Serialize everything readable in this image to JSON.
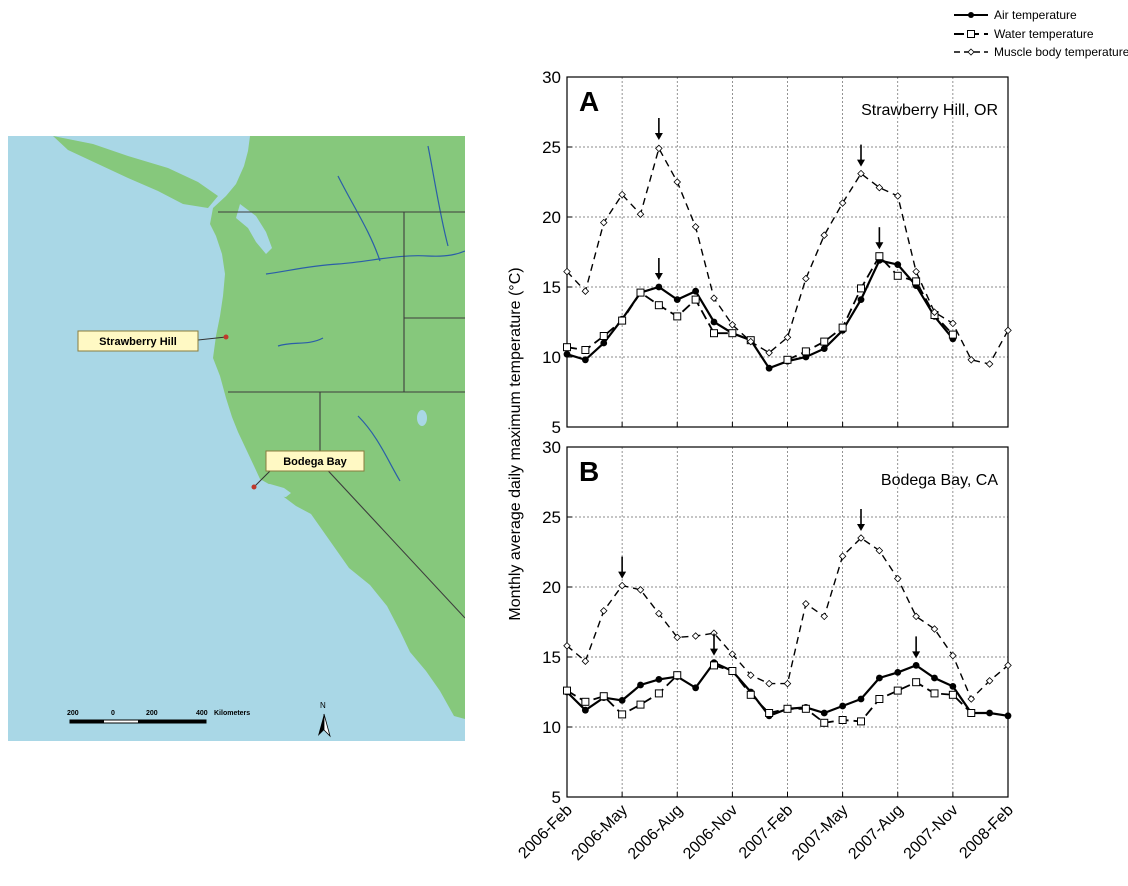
{
  "map": {
    "labels": {
      "site_a": "Strawberry Hill",
      "site_b": "Bodega Bay"
    },
    "scale": {
      "ticks": [
        "200",
        "0",
        "200",
        "400"
      ],
      "unit": "Kilometers"
    },
    "north": "N",
    "colors": {
      "ocean": "#a9d7e6",
      "land": "#86c87c",
      "border": "#3d3d3d",
      "river": "#2b5ea8"
    }
  },
  "chart_data": {
    "type": "line",
    "x": [
      "2006-Feb",
      "2006-Mar",
      "2006-Apr",
      "2006-May",
      "2006-Jun",
      "2006-Jul",
      "2006-Aug",
      "2006-Sep",
      "2006-Oct",
      "2006-Nov",
      "2006-Dec",
      "2007-Jan",
      "2007-Feb",
      "2007-Mar",
      "2007-Apr",
      "2007-May",
      "2007-Jun",
      "2007-Jul",
      "2007-Aug",
      "2007-Sep",
      "2007-Oct",
      "2007-Nov",
      "2007-Dec",
      "2008-Jan",
      "2008-Feb"
    ],
    "x_tick_labels": [
      "2006-Feb",
      "2006-May",
      "2006-Aug",
      "2006-Nov",
      "2007-Feb",
      "2007-May",
      "2007-Aug",
      "2007-Nov",
      "2008-Feb"
    ],
    "ylabel": "Monthly average daily maximum temperature (°C)",
    "ylim": [
      5,
      30
    ],
    "y_ticks": [
      5,
      10,
      15,
      20,
      25,
      30
    ],
    "grid": true,
    "legend": {
      "position": "top-right",
      "entries": [
        "Air temperature",
        "Water temperature",
        "Muscle body temperature"
      ]
    },
    "panels": [
      {
        "letter": "A",
        "site": "Strawberry Hill, OR",
        "series": [
          {
            "name": "Air temperature",
            "values": [
              10.2,
              9.8,
              11,
              12.7,
              14.6,
              15,
              14.1,
              14.7,
              12.5,
              11.7,
              11.2,
              9.2,
              9.7,
              10,
              10.6,
              11.9,
              14.1,
              16.9,
              16.6,
              15.1,
              12.9,
              11.3,
              null,
              null,
              null
            ]
          },
          {
            "name": "Water temperature",
            "values": [
              10.7,
              10.5,
              11.5,
              12.6,
              14.6,
              13.7,
              12.9,
              14.1,
              11.7,
              11.7,
              11.2,
              null,
              9.8,
              10.4,
              11.1,
              12.1,
              14.9,
              17.2,
              15.8,
              15.4,
              13,
              11.6,
              null,
              null,
              null
            ]
          },
          {
            "name": "Muscle body temperature",
            "values": [
              16.1,
              14.7,
              19.6,
              21.6,
              20.2,
              24.9,
              22.5,
              19.3,
              14.2,
              12.3,
              11.1,
              10.3,
              11.4,
              15.6,
              18.7,
              21,
              23.1,
              22.1,
              21.5,
              16.1,
              13.2,
              12.4,
              9.8,
              9.5,
              11.9
            ]
          }
        ],
        "arrows": [
          {
            "x": "2006-Jul",
            "y": 15
          },
          {
            "x": "2006-Jul",
            "y": 25
          },
          {
            "x": "2007-Jun",
            "y": 23.1
          },
          {
            "x": "2007-Jul",
            "y": 17.2
          }
        ]
      },
      {
        "letter": "B",
        "site": "Bodega Bay, CA",
        "series": [
          {
            "name": "Air temperature",
            "values": [
              12.5,
              11.2,
              12.1,
              11.9,
              13,
              13.4,
              13.6,
              12.8,
              14.6,
              14,
              12.5,
              10.8,
              11.3,
              11.4,
              11,
              11.5,
              12,
              13.5,
              13.9,
              14.4,
              13.5,
              12.9,
              11,
              11,
              10.8
            ]
          },
          {
            "name": "Water temperature",
            "values": [
              12.6,
              11.8,
              12.2,
              10.9,
              11.6,
              12.4,
              13.7,
              null,
              14.4,
              14,
              12.3,
              11,
              11.3,
              11.3,
              10.3,
              10.5,
              10.4,
              12,
              12.6,
              13.2,
              12.4,
              12.3,
              11,
              null,
              null
            ]
          },
          {
            "name": "Muscle body temperature",
            "values": [
              15.8,
              14.7,
              18.3,
              20.1,
              19.8,
              18.1,
              16.4,
              16.5,
              16.7,
              15.2,
              13.7,
              13.1,
              13.1,
              18.8,
              17.9,
              22.2,
              23.5,
              22.6,
              20.6,
              17.9,
              17,
              15.1,
              12,
              13.3,
              14.4
            ]
          }
        ],
        "arrows": [
          {
            "x": "2006-May",
            "y": 20.1
          },
          {
            "x": "2006-Oct",
            "y": 14.6
          },
          {
            "x": "2007-Jun",
            "y": 23.5
          },
          {
            "x": "2007-Sep",
            "y": 14.4
          }
        ]
      }
    ]
  }
}
